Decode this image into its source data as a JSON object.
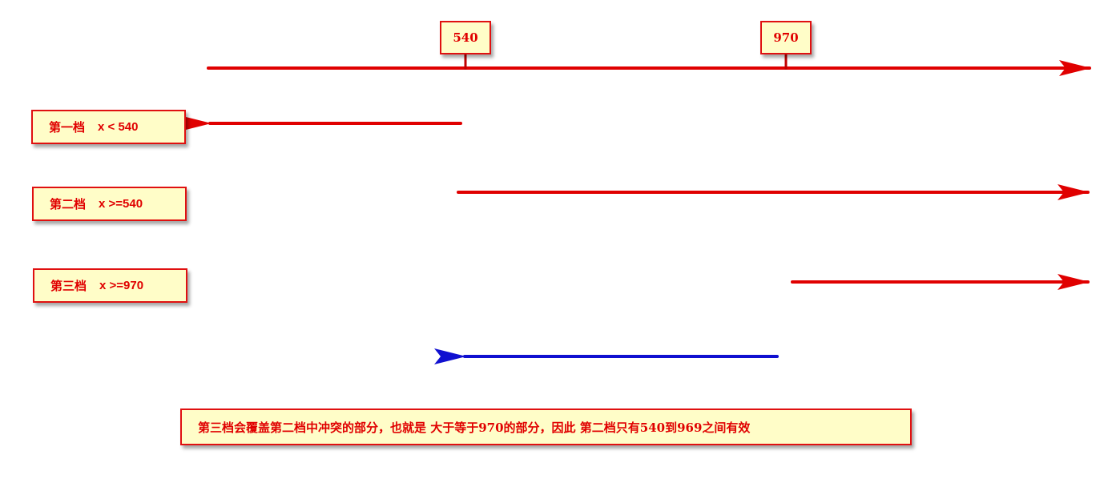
{
  "ticks": {
    "first": "540",
    "second": "970"
  },
  "tiers": [
    {
      "label": "第一档",
      "condition": "x < 540"
    },
    {
      "label": "第二档",
      "condition": "x >=540"
    },
    {
      "label": "第三档",
      "condition": "x >=970"
    }
  ],
  "note": "第三档会覆盖第二档中冲突的部分，也就是 大于等于970的部分，因此 第二档只有540到969之间有效",
  "colors": {
    "red_arrow": "#e00000",
    "blue_arrow": "#1010d0",
    "box_fill": "#fffdc8",
    "box_border": "#e01010",
    "text": "#e00000"
  }
}
